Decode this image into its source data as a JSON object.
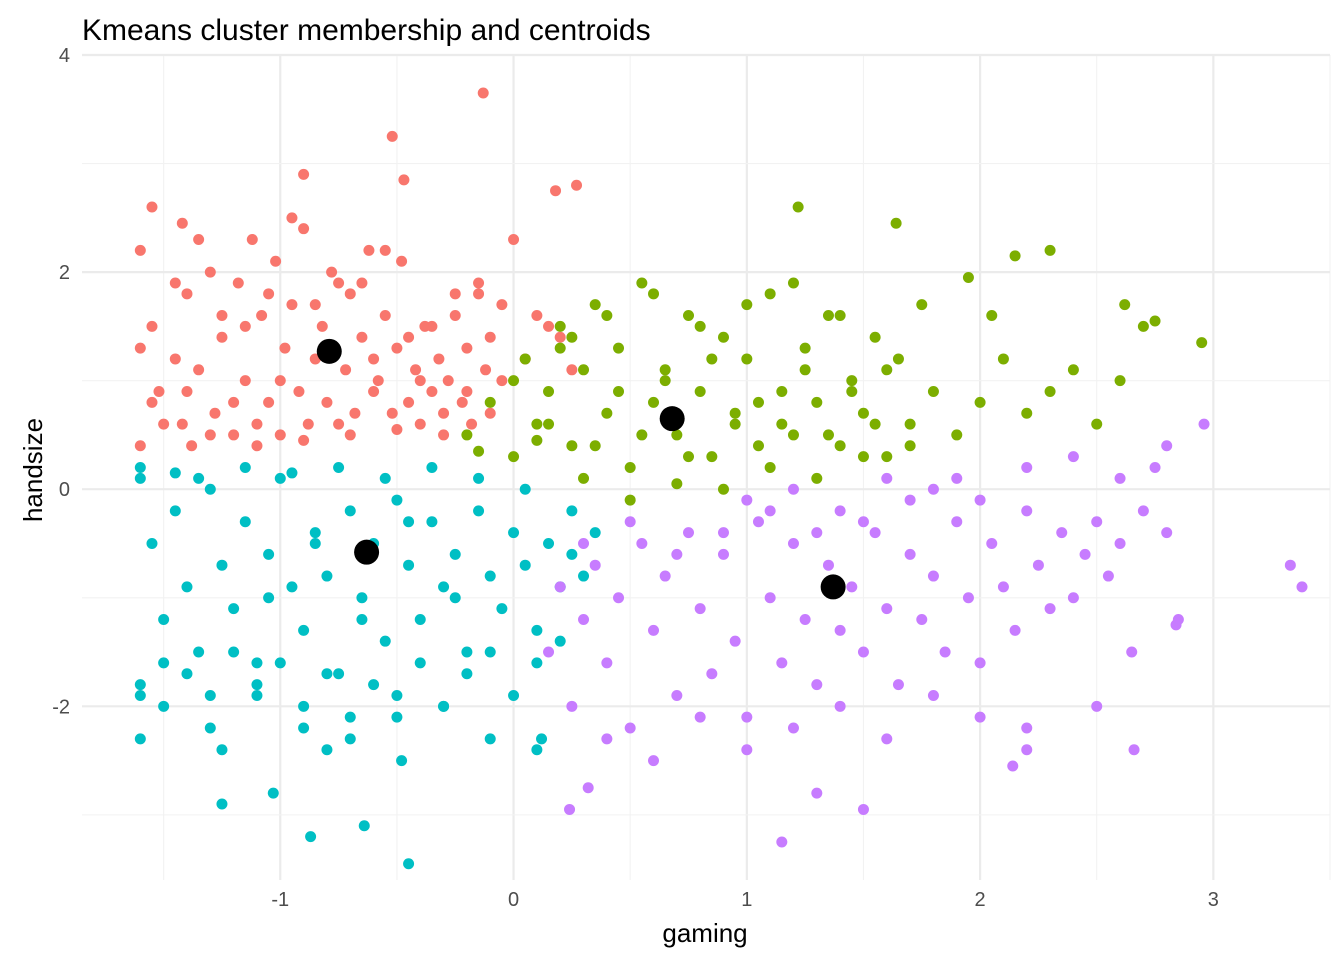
{
  "chart_data": {
    "type": "scatter",
    "title": "Kmeans cluster membership and centroids",
    "xlabel": "gaming",
    "ylabel": "handsize",
    "xlim": [
      -1.85,
      3.5
    ],
    "ylim": [
      -3.6,
      4.0
    ],
    "x_ticks": [
      -1,
      0,
      1,
      2,
      3
    ],
    "x_tick_labels": [
      "-1",
      "0",
      "1",
      "2",
      "3"
    ],
    "y_ticks": [
      -2,
      0,
      2,
      4
    ],
    "y_tick_labels": [
      "-2",
      "0",
      "2",
      "4"
    ],
    "grid": true,
    "legend": "none",
    "colors": {
      "cluster_1": "#F8766D",
      "cluster_2": "#7CAE00",
      "cluster_3": "#00BFC4",
      "cluster_4": "#C77CFF",
      "centroid": "#000000"
    },
    "series": [
      {
        "color": "#F8766D",
        "x": [
          -1.6,
          -1.55,
          -1.52,
          -1.45,
          -1.42,
          -1.4,
          -1.38,
          -1.35,
          -1.3,
          -1.28,
          -1.25,
          -1.2,
          -1.18,
          -1.15,
          -1.12,
          -1.1,
          -1.08,
          -1.05,
          -1.02,
          -1.0,
          -0.98,
          -0.95,
          -0.92,
          -0.9,
          -0.88,
          -0.85,
          -0.82,
          -0.8,
          -0.78,
          -0.75,
          -0.72,
          -0.7,
          -0.68,
          -0.65,
          -0.62,
          -0.6,
          -0.58,
          -0.55,
          -0.52,
          -0.5,
          -0.48,
          -0.45,
          -0.42,
          -0.4,
          -0.38,
          -0.35,
          -0.32,
          -0.3,
          -0.28,
          -0.25,
          -0.22,
          -0.2,
          -0.18,
          -0.15,
          -0.12,
          -0.1,
          -0.05,
          0.0,
          0.05,
          0.1,
          0.15,
          0.2,
          0.25,
          -1.6,
          -1.5,
          -1.3,
          -1.1,
          -0.9,
          -0.7,
          -0.5,
          -0.3,
          -0.1,
          -1.4,
          -1.2,
          -1.0,
          -0.8,
          -0.6,
          -0.4,
          -0.2,
          -1.6,
          -1.55,
          -1.45,
          -1.25,
          -1.05,
          -0.85,
          -0.65,
          -0.45,
          -0.25,
          -0.05,
          -1.35,
          -1.15,
          -0.95,
          -0.75,
          -0.55,
          -0.35,
          -0.15,
          -0.13,
          -0.52,
          -0.47,
          -1.55,
          -1.42,
          -0.9,
          0.27,
          0.18
        ],
        "y": [
          2.2,
          1.5,
          0.9,
          1.2,
          0.6,
          1.8,
          0.4,
          1.1,
          2.0,
          0.7,
          1.4,
          0.5,
          1.9,
          1.0,
          2.3,
          0.6,
          1.6,
          0.8,
          2.1,
          0.5,
          1.3,
          1.7,
          0.9,
          2.4,
          0.6,
          1.2,
          1.5,
          0.8,
          2.0,
          0.6,
          1.1,
          1.8,
          0.7,
          1.4,
          2.2,
          0.9,
          1.0,
          1.6,
          0.7,
          1.3,
          2.1,
          0.8,
          1.1,
          0.6,
          1.5,
          0.9,
          1.2,
          0.7,
          1.0,
          1.8,
          0.8,
          1.3,
          0.6,
          1.9,
          1.1,
          1.4,
          1.7,
          2.3,
          1.2,
          1.6,
          1.5,
          1.4,
          1.1,
          0.4,
          0.6,
          0.5,
          0.4,
          0.45,
          0.5,
          0.55,
          0.5,
          0.7,
          0.9,
          0.8,
          1.0,
          1.3,
          1.2,
          1.0,
          0.9,
          1.3,
          0.8,
          1.9,
          1.6,
          1.8,
          1.7,
          1.9,
          1.4,
          1.6,
          1.0,
          2.3,
          1.5,
          2.5,
          1.9,
          2.2,
          1.5,
          1.8,
          3.65,
          3.25,
          2.85,
          2.6,
          2.45,
          2.9,
          2.8,
          2.75
        ]
      },
      {
        "color": "#7CAE00",
        "x": [
          -0.2,
          -0.1,
          0.0,
          0.05,
          0.1,
          0.15,
          0.2,
          0.25,
          0.3,
          0.35,
          0.4,
          0.45,
          0.5,
          0.55,
          0.6,
          0.65,
          0.7,
          0.75,
          0.8,
          0.85,
          0.9,
          0.95,
          1.0,
          1.05,
          1.1,
          1.15,
          1.2,
          1.25,
          1.3,
          1.35,
          1.4,
          1.45,
          1.5,
          1.55,
          1.6,
          1.65,
          1.7,
          1.8,
          1.9,
          2.0,
          2.1,
          2.2,
          2.3,
          2.4,
          2.5,
          2.6,
          2.7,
          2.95,
          -0.15,
          0.1,
          0.3,
          0.5,
          0.7,
          0.9,
          1.1,
          1.3,
          1.5,
          1.7,
          0.0,
          0.2,
          0.4,
          0.6,
          0.8,
          1.0,
          1.2,
          1.4,
          1.6,
          0.15,
          0.35,
          0.55,
          0.75,
          0.95,
          1.15,
          1.35,
          1.55,
          0.25,
          0.45,
          0.65,
          0.85,
          1.05,
          1.25,
          1.45,
          1.22,
          1.64,
          2.15,
          2.3,
          2.75,
          2.62,
          1.75,
          1.95,
          2.05
        ],
        "y": [
          0.5,
          0.8,
          0.3,
          1.2,
          0.6,
          0.9,
          1.5,
          0.4,
          1.1,
          1.7,
          0.7,
          1.3,
          0.2,
          1.9,
          0.8,
          1.1,
          0.5,
          1.6,
          0.9,
          0.3,
          1.4,
          0.7,
          1.2,
          0.4,
          1.8,
          0.9,
          0.5,
          1.3,
          0.8,
          1.6,
          0.4,
          1.0,
          0.7,
          1.4,
          0.3,
          1.2,
          0.6,
          0.9,
          0.5,
          0.8,
          1.2,
          0.7,
          0.9,
          1.1,
          0.6,
          1.0,
          1.5,
          1.35,
          0.35,
          0.45,
          0.1,
          -0.1,
          0.05,
          0.0,
          0.2,
          0.1,
          0.3,
          0.4,
          1.0,
          1.3,
          1.6,
          1.8,
          1.5,
          1.7,
          1.9,
          1.6,
          1.1,
          0.6,
          0.4,
          0.5,
          0.3,
          0.6,
          0.6,
          0.5,
          0.6,
          1.4,
          0.9,
          1.0,
          1.2,
          0.8,
          1.1,
          0.9,
          2.6,
          2.45,
          2.15,
          2.2,
          1.55,
          1.7,
          1.7,
          1.95,
          1.6
        ]
      },
      {
        "color": "#00BFC4",
        "x": [
          -1.6,
          -1.55,
          -1.5,
          -1.45,
          -1.4,
          -1.35,
          -1.3,
          -1.25,
          -1.2,
          -1.15,
          -1.1,
          -1.05,
          -1.0,
          -0.95,
          -0.9,
          -0.85,
          -0.8,
          -0.75,
          -0.7,
          -0.65,
          -0.6,
          -0.55,
          -0.5,
          -0.45,
          -0.4,
          -0.35,
          -0.3,
          -0.25,
          -0.2,
          -0.15,
          -0.1,
          -0.05,
          0.0,
          0.05,
          0.1,
          0.15,
          0.2,
          0.25,
          0.3,
          0.35,
          -1.6,
          -1.5,
          -1.4,
          -1.3,
          -1.2,
          -1.1,
          -1.0,
          -0.9,
          -0.8,
          -0.7,
          -0.6,
          -0.5,
          -0.4,
          -0.3,
          -0.2,
          -0.1,
          0.0,
          0.1,
          0.2,
          -1.6,
          -1.45,
          -1.35,
          -1.15,
          -0.95,
          -0.75,
          -0.55,
          -0.35,
          -0.15,
          0.05,
          0.25,
          -1.6,
          -1.5,
          -1.3,
          -1.1,
          -0.9,
          -0.7,
          -0.5,
          -0.3,
          -0.1,
          0.1,
          -1.25,
          -1.05,
          -0.85,
          -0.65,
          -0.45,
          -0.25,
          -1.6,
          -1.25,
          -1.03,
          -0.87,
          -0.64,
          -0.45,
          -0.48,
          -0.8,
          0.12
        ],
        "y": [
          0.1,
          -0.5,
          -1.2,
          -0.2,
          -0.9,
          -1.5,
          0.0,
          -0.7,
          -1.1,
          -0.3,
          -1.6,
          -0.6,
          0.1,
          -0.9,
          -1.3,
          -0.4,
          -0.8,
          -1.7,
          -0.2,
          -1.0,
          -0.5,
          -1.4,
          -0.1,
          -0.7,
          -1.2,
          -0.3,
          -0.9,
          -0.6,
          -1.5,
          -0.2,
          -0.8,
          -1.1,
          -0.4,
          -0.7,
          -1.3,
          -0.5,
          -0.9,
          -0.6,
          -0.8,
          -0.4,
          -1.8,
          -1.6,
          -1.7,
          -1.9,
          -1.5,
          -1.8,
          -1.6,
          -2.0,
          -1.7,
          -2.1,
          -1.8,
          -1.9,
          -1.6,
          -2.0,
          -1.7,
          -1.5,
          -1.9,
          -1.6,
          -1.4,
          0.2,
          0.15,
          0.1,
          0.2,
          0.15,
          0.2,
          0.1,
          0.2,
          0.1,
          0.0,
          -0.2,
          -2.3,
          -2.0,
          -2.2,
          -1.9,
          -2.2,
          -2.3,
          -2.1,
          -2.0,
          -2.3,
          -2.4,
          -2.4,
          -1.0,
          -0.5,
          -1.2,
          -0.3,
          -1.0,
          -1.9,
          -2.9,
          -2.8,
          -3.2,
          -3.1,
          -3.45,
          -2.5,
          -2.4,
          -2.3
        ]
      },
      {
        "color": "#C77CFF",
        "x": [
          0.15,
          0.2,
          0.25,
          0.3,
          0.35,
          0.4,
          0.45,
          0.5,
          0.55,
          0.6,
          0.65,
          0.7,
          0.75,
          0.8,
          0.85,
          0.9,
          0.95,
          1.0,
          1.05,
          1.1,
          1.15,
          1.2,
          1.25,
          1.3,
          1.35,
          1.4,
          1.45,
          1.5,
          1.55,
          1.6,
          1.65,
          1.7,
          1.75,
          1.8,
          1.85,
          1.9,
          1.95,
          2.0,
          2.05,
          2.1,
          2.15,
          2.2,
          2.25,
          2.3,
          2.35,
          2.4,
          2.45,
          2.5,
          2.55,
          2.6,
          2.65,
          2.7,
          2.75,
          2.8,
          2.85,
          0.3,
          0.5,
          0.7,
          0.9,
          1.1,
          1.3,
          1.5,
          1.7,
          1.9,
          0.4,
          0.6,
          0.8,
          1.0,
          1.2,
          1.4,
          1.6,
          1.8,
          2.0,
          2.2,
          1.0,
          1.2,
          1.4,
          1.6,
          1.8,
          2.0,
          2.2,
          2.4,
          2.6,
          2.8,
          3.33,
          3.38,
          2.66,
          2.84,
          2.96,
          1.15,
          1.3,
          1.5,
          0.24,
          0.32,
          2.14,
          2.2,
          2.5
        ],
        "y": [
          -1.5,
          -0.9,
          -2.0,
          -1.2,
          -0.7,
          -1.6,
          -1.0,
          -2.2,
          -0.5,
          -1.3,
          -0.8,
          -1.9,
          -0.4,
          -1.1,
          -1.7,
          -0.6,
          -1.4,
          -2.1,
          -0.3,
          -1.0,
          -1.6,
          -0.5,
          -1.2,
          -1.8,
          -0.7,
          -1.3,
          -0.9,
          -1.5,
          -0.4,
          -1.1,
          -1.8,
          -0.6,
          -1.2,
          -0.8,
          -1.5,
          -0.3,
          -1.0,
          -1.6,
          -0.5,
          -0.9,
          -1.3,
          -0.2,
          -0.7,
          -1.1,
          -0.4,
          -1.0,
          -0.6,
          -0.3,
          -0.8,
          -0.5,
          -1.5,
          -0.2,
          0.2,
          -0.4,
          -1.2,
          -0.5,
          -0.3,
          -0.6,
          -0.4,
          -0.2,
          -0.4,
          -0.3,
          -0.1,
          0.1,
          -2.3,
          -2.5,
          -2.1,
          -2.4,
          -2.2,
          -2.0,
          -2.3,
          -1.9,
          -2.1,
          -2.2,
          -0.1,
          0.0,
          -0.2,
          0.1,
          0.0,
          -0.1,
          0.2,
          0.3,
          0.1,
          0.4,
          -0.7,
          -0.9,
          -2.4,
          -1.25,
          0.6,
          -3.25,
          -2.8,
          -2.95,
          -2.95,
          -2.75,
          -2.55,
          -2.4,
          -2.0
        ],
        "note": ""
      }
    ],
    "centroids": {
      "x": [
        -0.79,
        0.68,
        -0.63,
        1.37
      ],
      "y": [
        1.27,
        0.65,
        -0.58,
        -0.9
      ]
    }
  }
}
